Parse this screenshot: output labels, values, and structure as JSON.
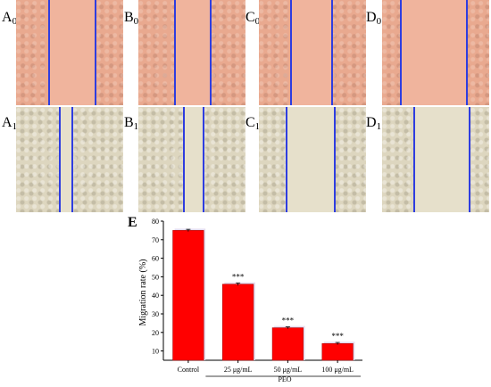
{
  "panels": [
    {
      "label": "A",
      "sub": "0"
    },
    {
      "label": "B",
      "sub": "0"
    },
    {
      "label": "C",
      "sub": "0"
    },
    {
      "label": "D",
      "sub": "0"
    },
    {
      "label": "A",
      "sub": "1"
    },
    {
      "label": "B",
      "sub": "1"
    },
    {
      "label": "C",
      "sub": "1"
    },
    {
      "label": "D",
      "sub": "1"
    }
  ],
  "chart_label": "E",
  "colors": {
    "bar": "#ff0000",
    "bar_edge": "#b00000",
    "scratch_line": "#2e3de0",
    "shadow": "#e6dcef"
  },
  "chart_data": {
    "type": "bar",
    "title": "",
    "xlabel": "",
    "ylabel": "Migration rate (%)",
    "ylim": [
      5,
      80
    ],
    "yticks": [
      10,
      20,
      30,
      40,
      50,
      60,
      70,
      80
    ],
    "categories": [
      "Control",
      "25 μg/mL",
      "50 μg/mL",
      "100 μg/mL"
    ],
    "values": [
      75,
      46,
      22.5,
      14
    ],
    "errors": [
      0.6,
      0.7,
      0.5,
      0.6
    ],
    "annotations": [
      "",
      "***",
      "***",
      "***"
    ],
    "group_label": "PEO",
    "grid": false,
    "legend": "none"
  }
}
